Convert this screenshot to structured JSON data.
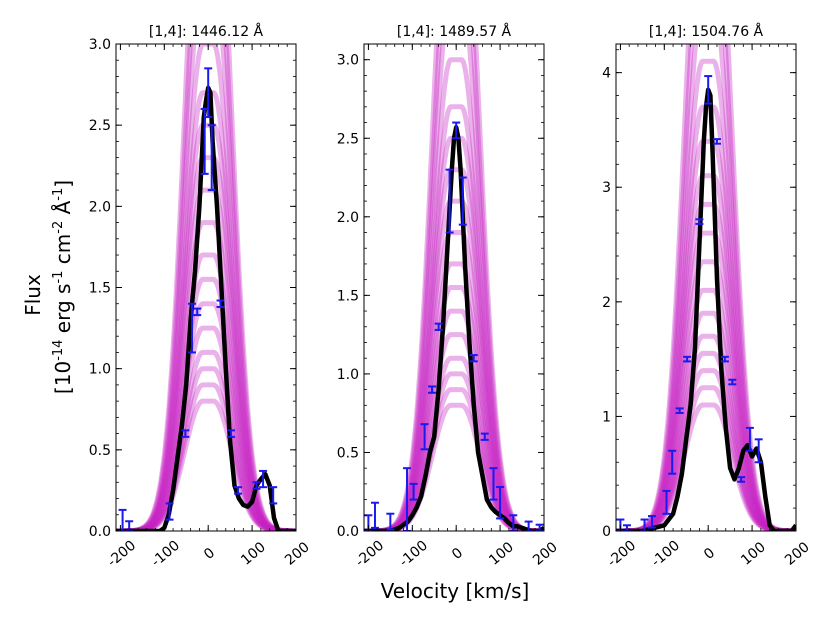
{
  "figure": {
    "ylabel_line1": "Flux",
    "ylabel_line2_main": "[10",
    "ylabel_exp1": "-14",
    "ylabel_mid1": " erg s",
    "ylabel_exp2": "-1",
    "ylabel_mid2": " cm",
    "ylabel_exp3": "-2",
    "ylabel_mid3": " Å",
    "ylabel_exp4": "-1",
    "ylabel_end": "]",
    "xlabel": "Velocity [km/s]"
  },
  "chart_data": [
    {
      "type": "line",
      "title": "[1,4]: 1446.12 Å",
      "xlabel": "Velocity [km/s]",
      "ylabel": "Flux [10^-14 erg s^-1 cm^-2 Å^-1]",
      "xlim": [
        -210,
        200
      ],
      "ylim": [
        0,
        3.0
      ],
      "xticks": [
        -200,
        -100,
        0,
        100,
        200
      ],
      "xtick_labels": [
        "-200",
        "-100",
        "0",
        "100",
        "200"
      ],
      "yticks": [
        0.0,
        0.5,
        1.0,
        1.5,
        2.0,
        2.5,
        3.0
      ],
      "ytick_labels": [
        "0.0",
        "0.5",
        "1.0",
        "1.5",
        "2.0",
        "2.5",
        "3.0"
      ],
      "model_amplitudes": [
        0.8,
        0.9,
        1.0,
        1.1,
        1.25,
        1.4,
        1.55,
        1.7,
        1.9,
        2.1,
        2.3,
        2.5,
        2.7,
        3.0,
        3.4,
        3.8,
        4.2
      ],
      "model_sigma": 42,
      "model_core_halfwidth": 12,
      "series": [
        {
          "name": "observed",
          "x": [
            -210,
            -190,
            -170,
            -150,
            -130,
            -110,
            -100,
            -90,
            -80,
            -70,
            -60,
            -50,
            -40,
            -30,
            -20,
            -10,
            -5,
            0,
            5,
            10,
            20,
            30,
            40,
            50,
            60,
            70,
            80,
            90,
            100,
            110,
            120,
            130,
            140,
            150,
            160,
            170,
            180,
            190,
            200
          ],
          "y": [
            0.0,
            0.0,
            0.0,
            0.0,
            0.0,
            0.0,
            0.02,
            0.1,
            0.25,
            0.45,
            0.65,
            0.9,
            1.3,
            1.6,
            2.0,
            2.55,
            2.65,
            2.73,
            2.7,
            2.4,
            2.0,
            1.5,
            1.0,
            0.55,
            0.28,
            0.2,
            0.16,
            0.15,
            0.18,
            0.28,
            0.32,
            0.35,
            0.28,
            0.08,
            0.0,
            0.0,
            0.0,
            0.0,
            0.0
          ]
        }
      ],
      "error_bars": [
        {
          "x": -195,
          "y": 0.05,
          "err": 0.08
        },
        {
          "x": -180,
          "y": 0.02,
          "err": 0.04
        },
        {
          "x": -88,
          "y": 0.12,
          "err": 0.05
        },
        {
          "x": -52,
          "y": 0.6,
          "err": 0.02
        },
        {
          "x": -37,
          "y": 1.25,
          "err": 0.15
        },
        {
          "x": -25,
          "y": 1.35,
          "err": 0.02
        },
        {
          "x": -8,
          "y": 2.4,
          "err": 0.2
        },
        {
          "x": 0,
          "y": 2.7,
          "err": 0.15
        },
        {
          "x": 8,
          "y": 2.3,
          "err": 0.2
        },
        {
          "x": 28,
          "y": 1.4,
          "err": 0.02
        },
        {
          "x": 52,
          "y": 0.6,
          "err": 0.02
        },
        {
          "x": 68,
          "y": 0.25,
          "err": 0.02
        },
        {
          "x": 110,
          "y": 0.28,
          "err": 0.02
        },
        {
          "x": 125,
          "y": 0.32,
          "err": 0.05
        },
        {
          "x": 148,
          "y": 0.22,
          "err": 0.05
        }
      ]
    },
    {
      "type": "line",
      "title": "[1,4]: 1489.57 Å",
      "xlabel": "Velocity [km/s]",
      "ylabel": "Flux [10^-14 erg s^-1 cm^-2 Å^-1]",
      "xlim": [
        -210,
        200
      ],
      "ylim": [
        0,
        3.1
      ],
      "xticks": [
        -200,
        -100,
        0,
        100,
        200
      ],
      "xtick_labels": [
        "-200",
        "-100",
        "0",
        "100",
        "200"
      ],
      "yticks": [
        0.0,
        0.5,
        1.0,
        1.5,
        2.0,
        2.5,
        3.0
      ],
      "ytick_labels": [
        "0.0",
        "0.5",
        "1.0",
        "1.5",
        "2.0",
        "2.5",
        "3.0"
      ],
      "model_amplitudes": [
        0.8,
        0.9,
        1.0,
        1.1,
        1.25,
        1.4,
        1.55,
        1.7,
        1.9,
        2.1,
        2.3,
        2.5,
        2.7,
        3.0,
        3.4,
        3.8,
        4.2
      ],
      "model_sigma": 42,
      "model_core_halfwidth": 12,
      "series": [
        {
          "name": "observed",
          "x": [
            -210,
            -190,
            -170,
            -150,
            -130,
            -110,
            -100,
            -90,
            -80,
            -70,
            -60,
            -50,
            -40,
            -30,
            -20,
            -10,
            -5,
            0,
            5,
            10,
            20,
            30,
            40,
            50,
            60,
            70,
            80,
            90,
            100,
            110,
            120,
            130,
            140,
            150,
            160,
            170,
            180,
            190,
            200
          ],
          "y": [
            0.0,
            0.0,
            0.0,
            0.0,
            0.02,
            0.06,
            0.1,
            0.15,
            0.22,
            0.35,
            0.5,
            0.6,
            0.9,
            1.3,
            1.8,
            2.3,
            2.5,
            2.57,
            2.5,
            2.3,
            1.7,
            1.2,
            0.8,
            0.5,
            0.35,
            0.2,
            0.15,
            0.12,
            0.1,
            0.08,
            0.05,
            0.03,
            0.03,
            0.02,
            0.01,
            0.0,
            0.0,
            0.0,
            0.02
          ]
        }
      ],
      "error_bars": [
        {
          "x": -200,
          "y": 0.05,
          "err": 0.05
        },
        {
          "x": -185,
          "y": 0.1,
          "err": 0.08
        },
        {
          "x": -150,
          "y": 0.06,
          "err": 0.05
        },
        {
          "x": -112,
          "y": 0.2,
          "err": 0.2
        },
        {
          "x": -97,
          "y": 0.25,
          "err": 0.05
        },
        {
          "x": -72,
          "y": 0.6,
          "err": 0.08
        },
        {
          "x": -55,
          "y": 0.9,
          "err": 0.02
        },
        {
          "x": -40,
          "y": 1.3,
          "err": 0.02
        },
        {
          "x": -15,
          "y": 2.1,
          "err": 0.2
        },
        {
          "x": 0,
          "y": 2.55,
          "err": 0.05
        },
        {
          "x": 15,
          "y": 2.1,
          "err": 0.15
        },
        {
          "x": 40,
          "y": 1.1,
          "err": 0.02
        },
        {
          "x": 65,
          "y": 0.6,
          "err": 0.02
        },
        {
          "x": 85,
          "y": 0.3,
          "err": 0.1
        },
        {
          "x": 100,
          "y": 0.18,
          "err": 0.1
        },
        {
          "x": 130,
          "y": 0.05,
          "err": 0.05
        },
        {
          "x": 165,
          "y": 0.03,
          "err": 0.03
        },
        {
          "x": 190,
          "y": 0.02,
          "err": 0.02
        }
      ]
    },
    {
      "type": "line",
      "title": "[1,4]: 1504.76 Å",
      "xlabel": "Velocity [km/s]",
      "ylabel": "Flux [10^-14 erg s^-1 cm^-2 Å^-1]",
      "xlim": [
        -210,
        200
      ],
      "ylim": [
        0,
        4.25
      ],
      "xticks": [
        -200,
        -100,
        0,
        100,
        200
      ],
      "xtick_labels": [
        "-200",
        "-100",
        "0",
        "100",
        "200"
      ],
      "yticks": [
        0,
        1,
        2,
        3,
        4
      ],
      "ytick_labels": [
        "0",
        "1",
        "2",
        "3",
        "4"
      ],
      "model_amplitudes": [
        1.1,
        1.25,
        1.4,
        1.55,
        1.7,
        1.9,
        2.1,
        2.35,
        2.6,
        2.85,
        3.1,
        3.4,
        3.7,
        4.1,
        4.6,
        5.2,
        5.8
      ],
      "model_sigma": 42,
      "model_core_halfwidth": 12,
      "series": [
        {
          "name": "observed",
          "x": [
            -210,
            -190,
            -170,
            -150,
            -130,
            -110,
            -100,
            -90,
            -80,
            -70,
            -60,
            -50,
            -40,
            -30,
            -20,
            -10,
            -5,
            0,
            5,
            10,
            20,
            30,
            40,
            50,
            60,
            70,
            80,
            90,
            100,
            110,
            120,
            130,
            140,
            150,
            160,
            170,
            180,
            190,
            200
          ],
          "y": [
            0.0,
            0.0,
            0.0,
            0.0,
            0.02,
            0.04,
            0.05,
            0.1,
            0.15,
            0.3,
            0.5,
            0.8,
            1.1,
            1.6,
            2.5,
            3.4,
            3.7,
            3.85,
            3.8,
            3.3,
            2.2,
            1.4,
            0.9,
            0.55,
            0.45,
            0.55,
            0.7,
            0.75,
            0.65,
            0.72,
            0.6,
            0.3,
            0.05,
            0.0,
            0.0,
            0.0,
            0.0,
            0.0,
            0.05
          ]
        }
      ],
      "error_bars": [
        {
          "x": -200,
          "y": 0.05,
          "err": 0.05
        },
        {
          "x": -185,
          "y": 0.02,
          "err": 0.03
        },
        {
          "x": -145,
          "y": 0.05,
          "err": 0.05
        },
        {
          "x": -128,
          "y": 0.08,
          "err": 0.05
        },
        {
          "x": -95,
          "y": 0.25,
          "err": 0.1
        },
        {
          "x": -82,
          "y": 0.6,
          "err": 0.1
        },
        {
          "x": -65,
          "y": 1.05,
          "err": 0.02
        },
        {
          "x": -48,
          "y": 1.5,
          "err": 0.02
        },
        {
          "x": -20,
          "y": 2.7,
          "err": 0.02
        },
        {
          "x": 0,
          "y": 3.85,
          "err": 0.12
        },
        {
          "x": 20,
          "y": 3.4,
          "err": 0.02
        },
        {
          "x": 38,
          "y": 1.5,
          "err": 0.02
        },
        {
          "x": 55,
          "y": 1.3,
          "err": 0.02
        },
        {
          "x": 75,
          "y": 0.45,
          "err": 0.02
        },
        {
          "x": 95,
          "y": 0.8,
          "err": 0.1
        },
        {
          "x": 115,
          "y": 0.7,
          "err": 0.1
        }
      ]
    }
  ]
}
